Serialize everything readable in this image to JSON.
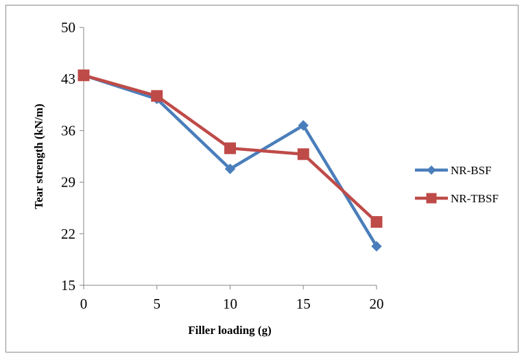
{
  "chart_data": {
    "type": "line",
    "x": [
      0,
      5,
      10,
      15,
      20
    ],
    "x_tick_labels": [
      "0",
      "5",
      "10",
      "15",
      "20"
    ],
    "xlabel": "Filler loading (g)",
    "ylabel": "Tear strength (kN/m)",
    "ylim": [
      15,
      50
    ],
    "y_ticks": [
      15,
      22,
      29,
      36,
      43,
      50
    ],
    "y_tick_labels": [
      "15",
      "22",
      "29",
      "36",
      "43",
      "50"
    ],
    "grid": false,
    "legend_position": "right",
    "series": [
      {
        "name": "NR-BSF",
        "values": [
          43.5,
          40.3,
          30.8,
          36.7,
          20.3
        ],
        "color": "#4a7ebb",
        "marker": "diamond"
      },
      {
        "name": "NR-TBSF",
        "values": [
          43.5,
          40.7,
          33.6,
          32.8,
          23.6
        ],
        "color": "#be4b48",
        "marker": "square"
      }
    ]
  }
}
